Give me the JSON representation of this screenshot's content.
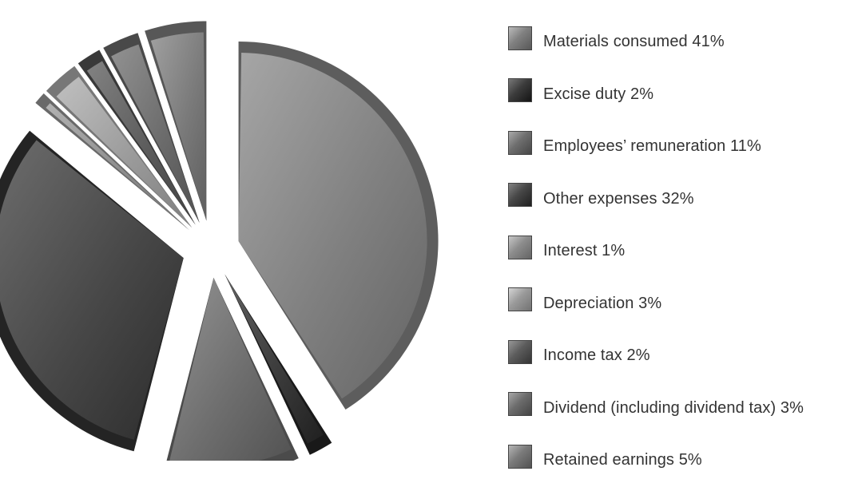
{
  "chart_data": {
    "type": "pie",
    "exploded": true,
    "shading": "3d-bevel-grayscale",
    "legend_position": "right",
    "slices": [
      {
        "label": "Materials consumed 41%",
        "value": 41,
        "color": "#808080"
      },
      {
        "label": "Excise duty 2%",
        "value": 2,
        "color": "#3c3c3c"
      },
      {
        "label": "Employees’ remuneration 11%",
        "value": 11,
        "color": "#6e6e6e"
      },
      {
        "label": "Other expenses 32%",
        "value": 32,
        "color": "#474747"
      },
      {
        "label": "Interest 1%",
        "value": 1,
        "color": "#8c8c8c"
      },
      {
        "label": "Depreciation 3%",
        "value": 3,
        "color": "#9a9a9a"
      },
      {
        "label": "Income tax 2%",
        "value": 2,
        "color": "#5c5c5c"
      },
      {
        "label": "Dividend (including dividend tax) 3%",
        "value": 3,
        "color": "#6c6c6c"
      },
      {
        "label": "Retained earnings 5%",
        "value": 5,
        "color": "#7a7a7a"
      }
    ]
  }
}
